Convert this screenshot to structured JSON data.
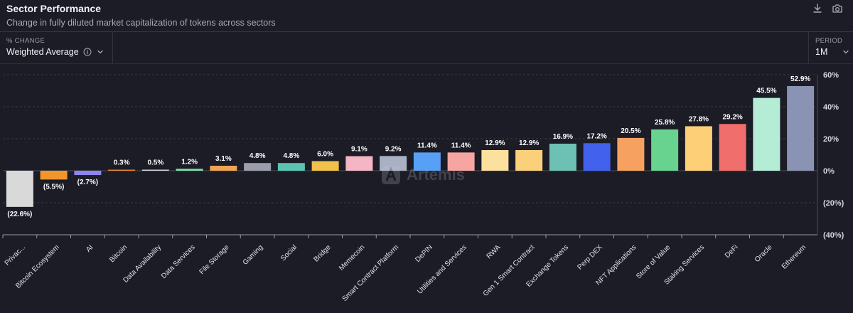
{
  "header": {
    "title": "Sector Performance",
    "subtitle": "Change in fully diluted market capitalization of tokens across sectors"
  },
  "controls": {
    "metric_label": "% CHANGE",
    "metric_value": "Weighted Average",
    "period_label": "PERIOD",
    "period_value": "1M"
  },
  "watermark": "Artemis",
  "chart_data": {
    "type": "bar",
    "title": "",
    "xlabel": "",
    "ylabel": "",
    "ylim": [
      -40,
      60
    ],
    "yticks": [
      60,
      40,
      20,
      0,
      -20,
      -40
    ],
    "ytick_labels": [
      "60%",
      "40%",
      "20%",
      "0%",
      "(20%)",
      "(40%)"
    ],
    "grid": true,
    "categories": [
      "Privac...",
      "Bitcoin Ecosystem",
      "AI",
      "Bitcoin",
      "Data Availability",
      "Data Services",
      "File Storage",
      "Gaming",
      "Social",
      "Bridge",
      "Memecoin",
      "Smart Contract Platform",
      "DePIN",
      "Utilities and Services",
      "RWA",
      "Gen 1 Smart Contract",
      "Exchange Tokens",
      "Perp DEX",
      "NFT Applications",
      "Store of Value",
      "Staking Services",
      "DeFi",
      "Oracle",
      "Ethereum"
    ],
    "values": [
      -22.6,
      -5.5,
      -2.7,
      0.3,
      0.5,
      1.2,
      3.1,
      4.8,
      4.8,
      6.0,
      9.1,
      9.2,
      11.4,
      11.4,
      12.9,
      12.9,
      16.9,
      17.2,
      20.5,
      25.8,
      27.8,
      29.2,
      45.5,
      52.9
    ],
    "value_labels": [
      "(22.6%)",
      "(5.5%)",
      "(2.7%)",
      "0.3%",
      "0.5%",
      "1.2%",
      "3.1%",
      "4.8%",
      "4.8%",
      "6.0%",
      "9.1%",
      "9.2%",
      "11.4%",
      "11.4%",
      "12.9%",
      "12.9%",
      "16.9%",
      "17.2%",
      "20.5%",
      "25.8%",
      "27.8%",
      "29.2%",
      "45.5%",
      "52.9%"
    ],
    "colors": [
      "#d9d9d9",
      "#f2962c",
      "#8e84f0",
      "#e8852e",
      "#cfd3dc",
      "#7ee0b0",
      "#f0a554",
      "#9b9dab",
      "#5ac4b0",
      "#f2c14a",
      "#f4b5c5",
      "#a9b0c2",
      "#58a0f5",
      "#f7a5a0",
      "#fbe09e",
      "#fbd07a",
      "#6dc0b4",
      "#4262ee",
      "#f7a160",
      "#67d38f",
      "#fdd077",
      "#f06e6b",
      "#b5ecd5",
      "#8a93b4"
    ]
  }
}
